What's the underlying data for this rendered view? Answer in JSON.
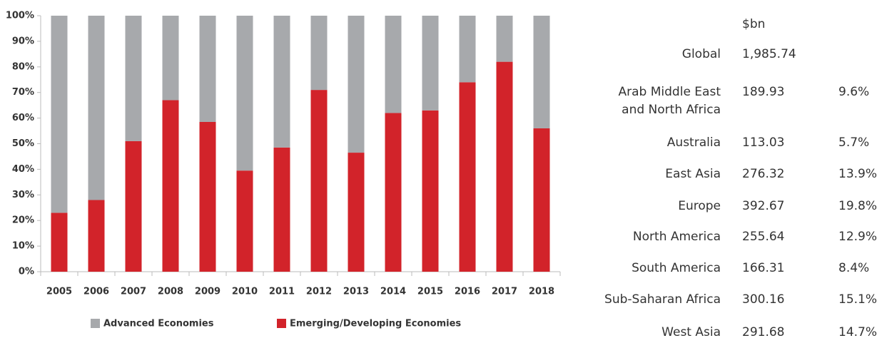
{
  "chart_data": {
    "type": "stacked_bar",
    "categories": [
      "2005",
      "2006",
      "2007",
      "2008",
      "2009",
      "2010",
      "2011",
      "2012",
      "2013",
      "2014",
      "2015",
      "2016",
      "2017",
      "2018"
    ],
    "series": [
      {
        "name": "Advanced Economies",
        "color": "#a7a9ac",
        "values": [
          77,
          72,
          49,
          33,
          41.5,
          60.5,
          51.5,
          29,
          53.5,
          38,
          37,
          26,
          18,
          44
        ]
      },
      {
        "name": "Emerging/Developing Economies",
        "color": "#d2232a",
        "values": [
          23,
          28,
          51,
          67,
          58.5,
          39.5,
          48.5,
          71,
          46.5,
          62,
          63,
          74,
          82,
          56
        ]
      }
    ],
    "ylim": [
      0,
      100
    ],
    "yticks": [
      {
        "value": 0,
        "label": "0%"
      },
      {
        "value": 10,
        "label": "10%"
      },
      {
        "value": 20,
        "label": "20%"
      },
      {
        "value": 30,
        "label": "30%"
      },
      {
        "value": 40,
        "label": "40%"
      },
      {
        "value": 50,
        "label": "50%"
      },
      {
        "value": 60,
        "label": "60%"
      },
      {
        "value": 70,
        "label": "70%"
      },
      {
        "value": 80,
        "label": "80%"
      },
      {
        "value": 90,
        "label": "90%"
      },
      {
        "value": 100,
        "label": "100%"
      }
    ],
    "legend": "bottom"
  },
  "table": {
    "header": "$bn",
    "rows": [
      {
        "label": "Global",
        "value": "1,985.74"
      },
      {
        "label": "Arab Middle East\nand North Africa",
        "value": "189.93",
        "share": "9.6%"
      },
      {
        "label": "Australia",
        "value": "113.03",
        "share": "5.7%"
      },
      {
        "label": "East Asia",
        "value": "276.32",
        "share": "13.9%"
      },
      {
        "label": "Europe",
        "value": "392.67",
        "share": "19.8%"
      },
      {
        "label": "North America",
        "value": "255.64",
        "share": "12.9%"
      },
      {
        "label": "South America",
        "value": "166.31",
        "share": "8.4%"
      },
      {
        "label": "Sub-Saharan Africa",
        "value": "300.16",
        "share": "15.1%"
      },
      {
        "label": "West Asia",
        "value": "291.68",
        "share": "14.7%"
      }
    ]
  }
}
